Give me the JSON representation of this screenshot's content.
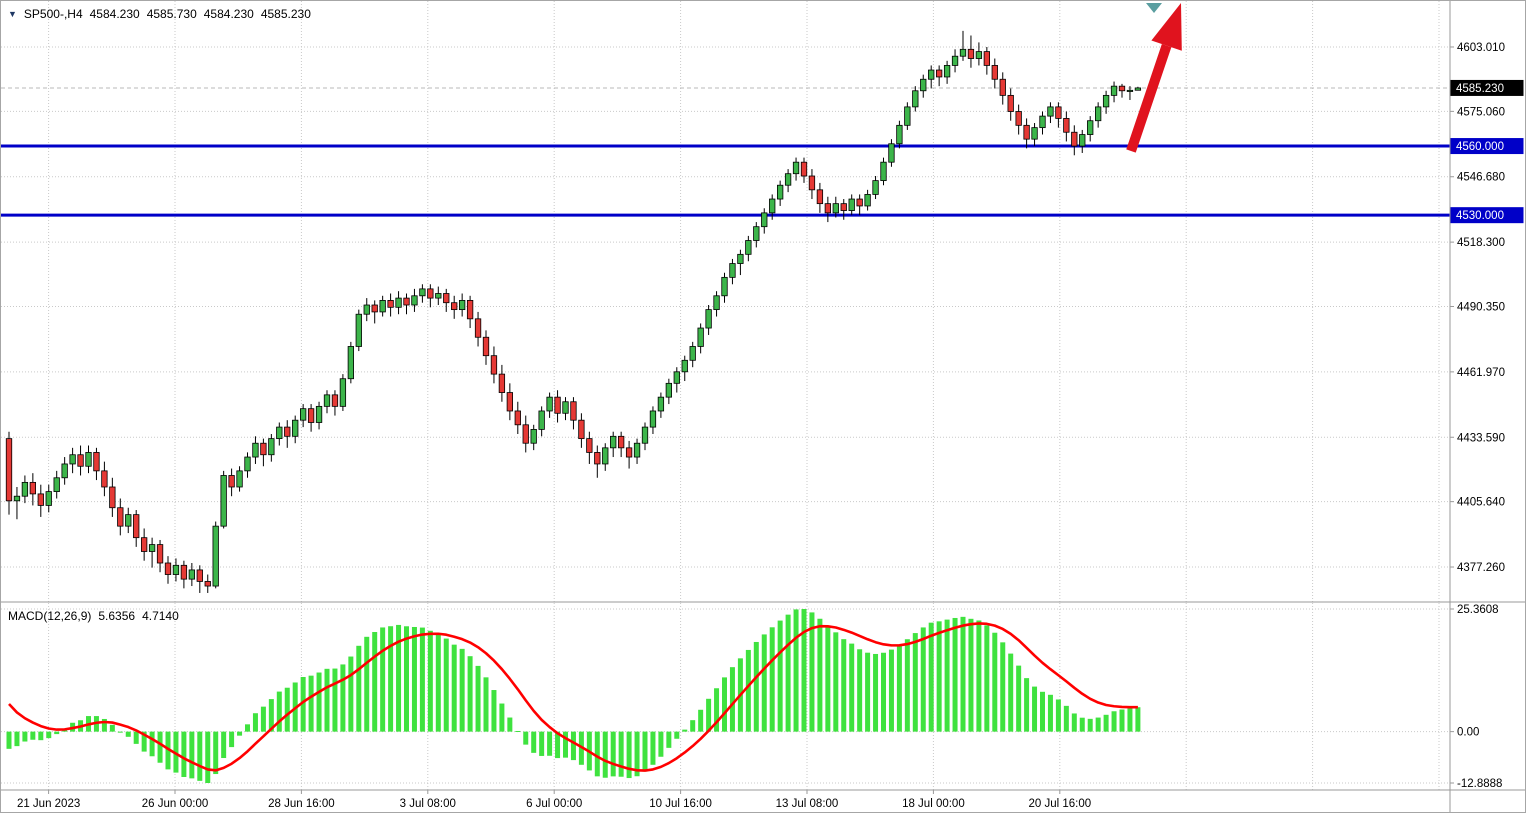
{
  "colors": {
    "background": "#FFFFFF",
    "border": "#A6A6A6",
    "grid": "#C9C9C9",
    "separator": "#9A9A9A",
    "axis_text": "#000000",
    "candle_up": "#3CB54A",
    "candle_down": "#E53935",
    "candle_outline": "#000000",
    "macd_histogram": "#3FE23F",
    "macd_signal": "#FF0000",
    "level_line": "#0000C8",
    "current_price_bg": "#000000",
    "bid_line": "#B8B8B8",
    "arrow": "#E0131E",
    "sell_marker": "#5A9EA0",
    "title_triangle": "#1F3864"
  },
  "header": {
    "collapse_icon": "▼",
    "symbol_period": "SP500-,H4",
    "open": "4584.230",
    "high": "4585.730",
    "low": "4584.230",
    "close": "4585.230"
  },
  "macd_header": {
    "label": "MACD(12,26,9)",
    "macd_value": "5.6356",
    "signal_value": "4.7140"
  },
  "chart_data": {
    "type": "candlestick",
    "title": "SP500-,H4",
    "symbol": "SP500",
    "timeframe": "H4",
    "visible_price_range": [
      4362.5,
      4623.0
    ],
    "y_axis": {
      "labels": [
        {
          "text": "4603.010",
          "value": 4603.01,
          "style": "plain"
        },
        {
          "text": "4585.230",
          "value": 4585.23,
          "style": "current"
        },
        {
          "text": "4575.060",
          "value": 4575.06,
          "style": "plain"
        },
        {
          "text": "4560.000",
          "value": 4560.0,
          "style": "level"
        },
        {
          "text": "4546.680",
          "value": 4546.68,
          "style": "plain"
        },
        {
          "text": "4530.000",
          "value": 4530.0,
          "style": "level"
        },
        {
          "text": "4518.300",
          "value": 4518.3,
          "style": "plain"
        },
        {
          "text": "4490.350",
          "value": 4490.35,
          "style": "plain"
        },
        {
          "text": "4461.970",
          "value": 4461.97,
          "style": "plain"
        },
        {
          "text": "4433.590",
          "value": 4433.59,
          "style": "plain"
        },
        {
          "text": "4405.640",
          "value": 4405.64,
          "style": "plain"
        },
        {
          "text": "4377.260",
          "value": 4377.26,
          "style": "plain"
        }
      ]
    },
    "x_axis": {
      "labels": [
        "21 Jun 2023",
        "26 Jun 00:00",
        "28 Jun 16:00",
        "3 Jul 08:00",
        "6 Jul 00:00",
        "10 Jul 16:00",
        "13 Jul 08:00",
        "18 Jul 00:00",
        "20 Jul 16:00"
      ]
    },
    "price_lines": [
      {
        "value": 4560.0,
        "text": "4560.000"
      },
      {
        "value": 4530.0,
        "text": "4530.000"
      }
    ],
    "current_price": {
      "value": 4585.23,
      "text": "4585.230"
    },
    "indicator": {
      "name": "MACD",
      "params": [
        12,
        26,
        9
      ],
      "macd_current": 5.6356,
      "signal_current": 4.714,
      "axis": {
        "max": "25.3608",
        "zero": "0.00",
        "min": "-12.8888"
      }
    },
    "candles": [
      [
        4433,
        4436,
        4400,
        4406
      ],
      [
        4406,
        4412,
        4398,
        4408
      ],
      [
        4408,
        4417,
        4405,
        4414
      ],
      [
        4414,
        4418,
        4404,
        4409
      ],
      [
        4409,
        4413,
        4399,
        4404
      ],
      [
        4404,
        4413,
        4401,
        4410
      ],
      [
        4410,
        4419,
        4407,
        4416
      ],
      [
        4416,
        4425,
        4413,
        4422
      ],
      [
        4422,
        4429,
        4418,
        4426
      ],
      [
        4426,
        4430,
        4417,
        4421
      ],
      [
        4421,
        4430,
        4418,
        4427
      ],
      [
        4427,
        4429,
        4415,
        4419
      ],
      [
        4419,
        4423,
        4408,
        4412
      ],
      [
        4412,
        4416,
        4399,
        4403
      ],
      [
        4403,
        4407,
        4391,
        4395
      ],
      [
        4395,
        4403,
        4392,
        4400
      ],
      [
        4400,
        4402,
        4386,
        4390
      ],
      [
        4390,
        4394,
        4380,
        4384
      ],
      [
        4384,
        4390,
        4377,
        4387
      ],
      [
        4387,
        4389,
        4375,
        4379
      ],
      [
        4379,
        4382,
        4370,
        4374
      ],
      [
        4374,
        4381,
        4371,
        4378
      ],
      [
        4378,
        4380,
        4368,
        4372
      ],
      [
        4372,
        4379,
        4369,
        4376
      ],
      [
        4376,
        4378,
        4366,
        4371
      ],
      [
        4371,
        4374,
        4366,
        4369
      ],
      [
        4369,
        4397,
        4368,
        4395
      ],
      [
        4395,
        4419,
        4394,
        4417
      ],
      [
        4417,
        4420,
        4408,
        4412
      ],
      [
        4412,
        4421,
        4410,
        4419
      ],
      [
        4419,
        4427,
        4416,
        4425
      ],
      [
        4425,
        4434,
        4422,
        4431
      ],
      [
        4431,
        4433,
        4421,
        4426
      ],
      [
        4426,
        4435,
        4423,
        4433
      ],
      [
        4433,
        4440,
        4430,
        4438
      ],
      [
        4438,
        4441,
        4429,
        4434
      ],
      [
        4434,
        4443,
        4431,
        4441
      ],
      [
        4441,
        4448,
        4438,
        4446
      ],
      [
        4446,
        4448,
        4436,
        4440
      ],
      [
        4440,
        4449,
        4437,
        4447
      ],
      [
        4447,
        4454,
        4444,
        4452
      ],
      [
        4452,
        4454,
        4443,
        4447
      ],
      [
        4447,
        4461,
        4445,
        4459
      ],
      [
        4459,
        4475,
        4457,
        4473
      ],
      [
        4473,
        4489,
        4471,
        4487
      ],
      [
        4487,
        4494,
        4484,
        4491
      ],
      [
        4491,
        4493,
        4483,
        4488
      ],
      [
        4488,
        4495,
        4486,
        4493
      ],
      [
        4493,
        4496,
        4486,
        4490
      ],
      [
        4490,
        4497,
        4487,
        4494
      ],
      [
        4494,
        4496,
        4487,
        4491
      ],
      [
        4491,
        4498,
        4488,
        4495
      ],
      [
        4495,
        4500,
        4492,
        4498
      ],
      [
        4498,
        4500,
        4490,
        4494
      ],
      [
        4494,
        4499,
        4491,
        4496
      ],
      [
        4496,
        4498,
        4488,
        4492
      ],
      [
        4492,
        4495,
        4485,
        4489
      ],
      [
        4489,
        4496,
        4486,
        4493
      ],
      [
        4493,
        4495,
        4481,
        4485
      ],
      [
        4485,
        4488,
        4473,
        4477
      ],
      [
        4477,
        4480,
        4465,
        4469
      ],
      [
        4469,
        4473,
        4457,
        4461
      ],
      [
        4461,
        4465,
        4449,
        4453
      ],
      [
        4453,
        4457,
        4441,
        4445
      ],
      [
        4445,
        4449,
        4435,
        4439
      ],
      [
        4439,
        4443,
        4427,
        4431
      ],
      [
        4431,
        4439,
        4428,
        4437
      ],
      [
        4437,
        4447,
        4434,
        4445
      ],
      [
        4445,
        4453,
        4442,
        4451
      ],
      [
        4451,
        4454,
        4440,
        4444
      ],
      [
        4444,
        4451,
        4441,
        4449
      ],
      [
        4449,
        4451,
        4437,
        4441
      ],
      [
        4441,
        4444,
        4429,
        4433
      ],
      [
        4433,
        4436,
        4422,
        4427
      ],
      [
        4427,
        4430,
        4416,
        4422
      ],
      [
        4422,
        4431,
        4419,
        4429
      ],
      [
        4429,
        4436,
        4425,
        4434
      ],
      [
        4434,
        4436,
        4425,
        4429
      ],
      [
        4429,
        4432,
        4420,
        4425
      ],
      [
        4425,
        4433,
        4422,
        4431
      ],
      [
        4431,
        4440,
        4428,
        4438
      ],
      [
        4438,
        4447,
        4435,
        4445
      ],
      [
        4445,
        4453,
        4442,
        4451
      ],
      [
        4451,
        4459,
        4448,
        4457
      ],
      [
        4457,
        4464,
        4453,
        4462
      ],
      [
        4462,
        4469,
        4458,
        4467
      ],
      [
        4467,
        4475,
        4464,
        4473
      ],
      [
        4473,
        4483,
        4470,
        4481
      ],
      [
        4481,
        4491,
        4478,
        4489
      ],
      [
        4489,
        4497,
        4486,
        4495
      ],
      [
        4495,
        4505,
        4492,
        4503
      ],
      [
        4503,
        4511,
        4500,
        4509
      ],
      [
        4509,
        4515,
        4504,
        4513
      ],
      [
        4513,
        4521,
        4510,
        4519
      ],
      [
        4519,
        4527,
        4516,
        4525
      ],
      [
        4525,
        4533,
        4522,
        4531
      ],
      [
        4531,
        4539,
        4528,
        4537
      ],
      [
        4537,
        4545,
        4534,
        4543
      ],
      [
        4543,
        4550,
        4540,
        4548
      ],
      [
        4548,
        4555,
        4545,
        4553
      ],
      [
        4553,
        4555,
        4544,
        4547
      ],
      [
        4547,
        4550,
        4537,
        4541
      ],
      [
        4541,
        4544,
        4531,
        4535
      ],
      [
        4535,
        4538,
        4527,
        4531
      ],
      [
        4531,
        4538,
        4529,
        4535
      ],
      [
        4535,
        4537,
        4528,
        4532
      ],
      [
        4532,
        4539,
        4530,
        4537
      ],
      [
        4537,
        4539,
        4530,
        4534
      ],
      [
        4534,
        4541,
        4532,
        4539
      ],
      [
        4539,
        4547,
        4537,
        4545
      ],
      [
        4545,
        4555,
        4543,
        4553
      ],
      [
        4553,
        4563,
        4551,
        4561
      ],
      [
        4561,
        4571,
        4559,
        4569
      ],
      [
        4569,
        4579,
        4567,
        4577
      ],
      [
        4577,
        4586,
        4575,
        4584
      ],
      [
        4584,
        4591,
        4581,
        4589
      ],
      [
        4589,
        4595,
        4585,
        4593
      ],
      [
        4593,
        4595,
        4586,
        4590
      ],
      [
        4590,
        4597,
        4587,
        4595
      ],
      [
        4595,
        4602,
        4592,
        4599
      ],
      [
        4599,
        4610,
        4597,
        4602
      ],
      [
        4602,
        4608,
        4594,
        4598
      ],
      [
        4598,
        4605,
        4595,
        4601
      ],
      [
        4601,
        4603,
        4591,
        4595
      ],
      [
        4595,
        4598,
        4585,
        4589
      ],
      [
        4589,
        4592,
        4578,
        4582
      ],
      [
        4582,
        4585,
        4571,
        4575
      ],
      [
        4575,
        4578,
        4565,
        4569
      ],
      [
        4569,
        4572,
        4559,
        4563
      ],
      [
        4563,
        4570,
        4560,
        4568
      ],
      [
        4568,
        4575,
        4565,
        4573
      ],
      [
        4573,
        4579,
        4570,
        4577
      ],
      [
        4577,
        4579,
        4568,
        4572
      ],
      [
        4572,
        4575,
        4562,
        4566
      ],
      [
        4566,
        4569,
        4556,
        4560
      ],
      [
        4560,
        4567,
        4557,
        4565
      ],
      [
        4565,
        4573,
        4562,
        4571
      ],
      [
        4571,
        4579,
        4568,
        4577
      ],
      [
        4577,
        4584,
        4574,
        4582
      ],
      [
        4582,
        4588,
        4579,
        4586
      ],
      [
        4586,
        4587,
        4581,
        4584
      ],
      [
        4584,
        4586,
        4580,
        4584.2
      ],
      [
        4584.23,
        4585.73,
        4584.23,
        4585.23
      ]
    ]
  }
}
